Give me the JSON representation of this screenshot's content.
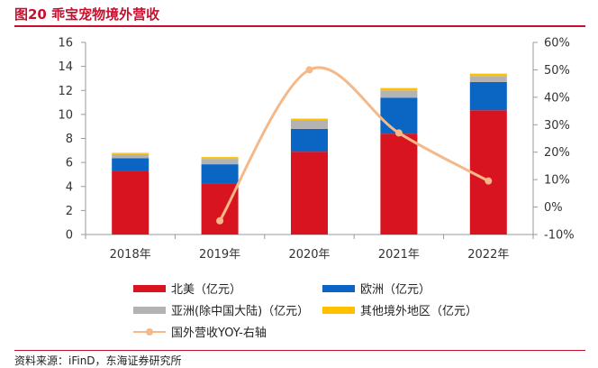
{
  "header": {
    "title": "图20 乖宝宠物境外营收"
  },
  "footer": {
    "source": "资料来源：iFinD，东海证券研究所"
  },
  "legend": {
    "items": [
      {
        "label": "北美（亿元）",
        "color": "#d7141f",
        "kind": "bar"
      },
      {
        "label": "欧洲（亿元）",
        "color": "#0a66c2",
        "kind": "bar"
      },
      {
        "label": "亚洲(除中国大陆)（亿元）",
        "color": "#b3b3b3",
        "kind": "bar"
      },
      {
        "label": "其他境外地区（亿元）",
        "color": "#ffc000",
        "kind": "bar"
      },
      {
        "label": "国外营收YOY-右轴",
        "color": "#f5b989",
        "kind": "line"
      }
    ]
  },
  "chart_data": {
    "type": "bar",
    "stacked": true,
    "categories": [
      "2018年",
      "2019年",
      "2020年",
      "2021年",
      "2022年"
    ],
    "series": [
      {
        "name": "北美（亿元）",
        "color": "#d7141f",
        "values": [
          5.3,
          4.25,
          6.9,
          8.4,
          10.35
        ]
      },
      {
        "name": "欧洲（亿元）",
        "color": "#0a66c2",
        "values": [
          1.05,
          1.6,
          1.9,
          3.0,
          2.35
        ]
      },
      {
        "name": "亚洲(除中国大陆)（亿元）",
        "color": "#b3b3b3",
        "values": [
          0.35,
          0.45,
          0.7,
          0.6,
          0.5
        ]
      },
      {
        "name": "其他境外地区（亿元）",
        "color": "#ffc000",
        "values": [
          0.1,
          0.15,
          0.15,
          0.2,
          0.2
        ]
      }
    ],
    "line": {
      "name": "国外营收YOY-右轴",
      "axis": "right",
      "color": "#f5b989",
      "values": [
        null,
        -5,
        50,
        27,
        9.5
      ]
    },
    "ylim": [
      0,
      16
    ],
    "yticks": [
      0,
      2,
      4,
      6,
      8,
      10,
      12,
      14,
      16
    ],
    "y2lim": [
      -10,
      60
    ],
    "y2ticks": [
      -10,
      0,
      10,
      20,
      30,
      40,
      50,
      60
    ],
    "y2_format": "percent",
    "xlabel": "",
    "ylabel": "",
    "legend_position": "bottom"
  }
}
